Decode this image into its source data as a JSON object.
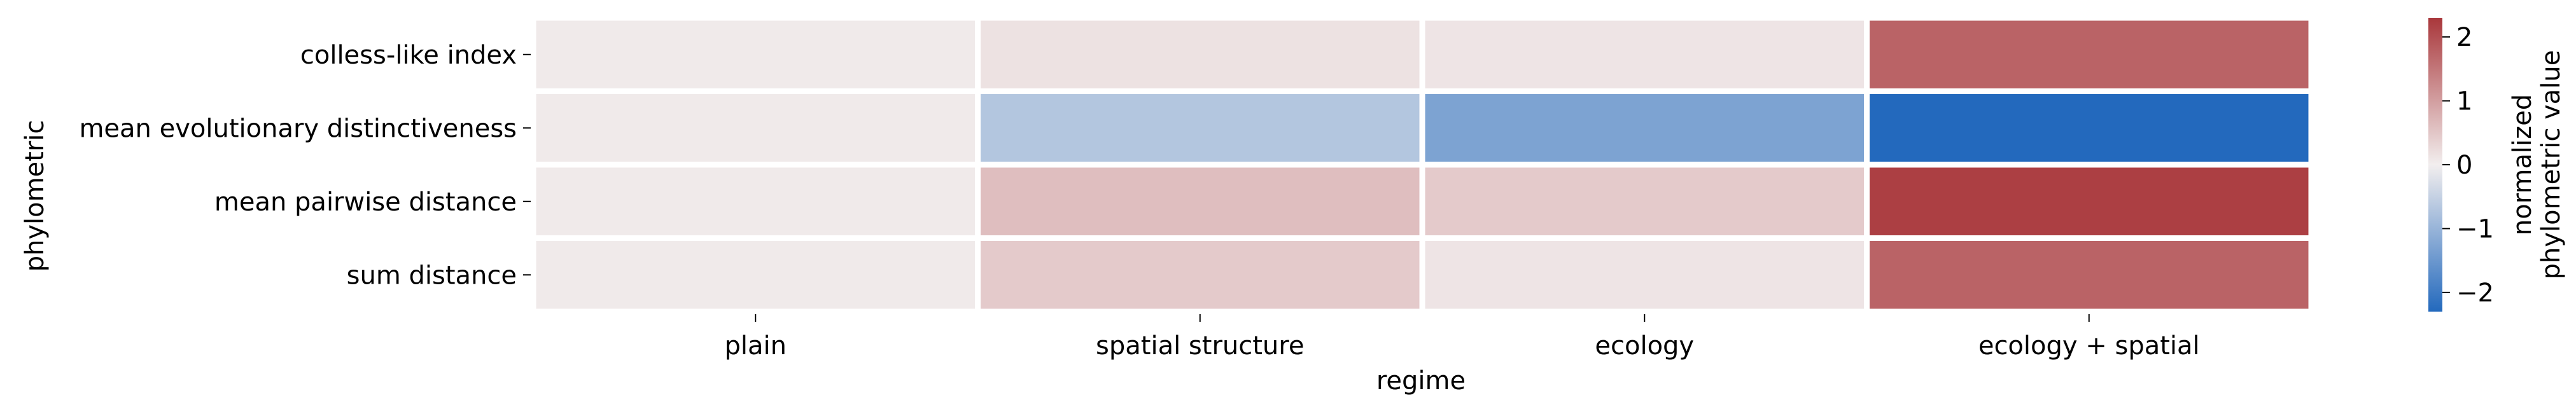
{
  "chart_data": {
    "type": "heatmap",
    "xlabel": "regime",
    "ylabel": "phylometric",
    "x_categories": [
      "plain",
      "spatial structure",
      "ecology",
      "ecology + spatial"
    ],
    "y_categories": [
      "colless-like index",
      "mean evolutionary distinctiveness",
      "mean pairwise distance",
      "sum distance"
    ],
    "values": [
      [
        0.05,
        0.15,
        0.12,
        1.75
      ],
      [
        0.05,
        -0.7,
        -1.3,
        -2.3
      ],
      [
        0.05,
        0.6,
        0.45,
        2.2
      ],
      [
        0.05,
        0.45,
        0.12,
        1.75
      ]
    ],
    "colorbar": {
      "label_line1": "normalized",
      "label_line2": "phylometric value",
      "range": [
        -2.3,
        2.3
      ],
      "ticks": [
        -2,
        -1,
        0,
        1,
        2
      ],
      "tick_labels": [
        "−2",
        "−1",
        "0",
        "1",
        "2"
      ],
      "colormap": "vlag",
      "colors": {
        "low": "#2369bd",
        "mid": "#f2eeee",
        "high": "#a9373b"
      }
    },
    "grid_line_color": "#ffffff"
  }
}
